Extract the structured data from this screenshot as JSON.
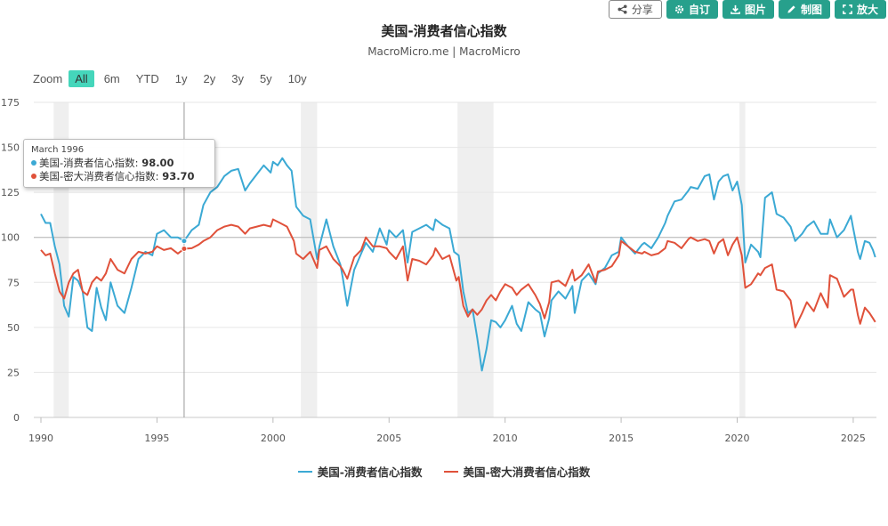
{
  "toolbar": {
    "share": "分享",
    "custom": "自订",
    "image": "图片",
    "draw": "制图",
    "enlarge": "放大"
  },
  "zoom": {
    "label": "Zoom",
    "options": [
      "All",
      "6m",
      "YTD",
      "1y",
      "2y",
      "3y",
      "5y",
      "10y"
    ],
    "active": "All"
  },
  "tooltip": {
    "date": "March 1996",
    "rows": [
      {
        "name": "美国-消费者信心指数",
        "value": "98.00"
      },
      {
        "name": "美国-密大消费者信心指数",
        "value": "93.70"
      }
    ]
  },
  "chart_data": {
    "type": "line",
    "title": "美国-消费者信心指数",
    "subtitle": "MacroMicro.me | MacroMicro",
    "xlim": [
      1990,
      2026
    ],
    "ylim": [
      0,
      175
    ],
    "yticks": [
      0,
      25,
      50,
      75,
      100,
      125,
      150,
      175
    ],
    "xticks": [
      1990,
      1995,
      2000,
      2005,
      2010,
      2015,
      2020,
      2025
    ],
    "grid": true,
    "legend_position": "bottom",
    "reference_line": 100,
    "crosshair_x": 1996.17,
    "recessions": [
      [
        1990.55,
        1991.2
      ],
      [
        2001.2,
        2001.9
      ],
      [
        2007.95,
        2009.5
      ],
      [
        2020.1,
        2020.35
      ]
    ],
    "series": [
      {
        "name": "美国-消费者信心指数",
        "color": "#3ba9d4",
        "points": [
          [
            1990,
            113
          ],
          [
            1990.2,
            108
          ],
          [
            1990.4,
            108
          ],
          [
            1990.6,
            95
          ],
          [
            1990.8,
            85
          ],
          [
            1991,
            62
          ],
          [
            1991.2,
            56
          ],
          [
            1991.4,
            78
          ],
          [
            1991.6,
            76
          ],
          [
            1991.8,
            70
          ],
          [
            1992,
            50
          ],
          [
            1992.2,
            48
          ],
          [
            1992.4,
            72
          ],
          [
            1992.6,
            61
          ],
          [
            1992.8,
            54
          ],
          [
            1993,
            75
          ],
          [
            1993.3,
            62
          ],
          [
            1993.6,
            58
          ],
          [
            1993.9,
            72
          ],
          [
            1994.2,
            88
          ],
          [
            1994.5,
            92
          ],
          [
            1994.8,
            90
          ],
          [
            1995,
            102
          ],
          [
            1995.3,
            104
          ],
          [
            1995.6,
            100
          ],
          [
            1995.9,
            100
          ],
          [
            1996.17,
            98
          ],
          [
            1996.5,
            104
          ],
          [
            1996.8,
            107
          ],
          [
            1997,
            118
          ],
          [
            1997.3,
            125
          ],
          [
            1997.6,
            128
          ],
          [
            1997.9,
            134
          ],
          [
            1998.2,
            137
          ],
          [
            1998.5,
            138
          ],
          [
            1998.8,
            126
          ],
          [
            1999,
            130
          ],
          [
            1999.3,
            135
          ],
          [
            1999.6,
            140
          ],
          [
            1999.9,
            136
          ],
          [
            2000,
            142
          ],
          [
            2000.2,
            140
          ],
          [
            2000.4,
            144
          ],
          [
            2000.6,
            140
          ],
          [
            2000.8,
            137
          ],
          [
            2001,
            117
          ],
          [
            2001.3,
            112
          ],
          [
            2001.6,
            110
          ],
          [
            2001.9,
            88
          ],
          [
            2002,
            95
          ],
          [
            2002.3,
            110
          ],
          [
            2002.6,
            95
          ],
          [
            2002.9,
            85
          ],
          [
            2003,
            78
          ],
          [
            2003.2,
            62
          ],
          [
            2003.5,
            82
          ],
          [
            2003.8,
            91
          ],
          [
            2004,
            97
          ],
          [
            2004.3,
            92
          ],
          [
            2004.6,
            105
          ],
          [
            2004.9,
            96
          ],
          [
            2005,
            104
          ],
          [
            2005.3,
            100
          ],
          [
            2005.6,
            104
          ],
          [
            2005.8,
            86
          ],
          [
            2006,
            103
          ],
          [
            2006.3,
            105
          ],
          [
            2006.6,
            107
          ],
          [
            2006.9,
            104
          ],
          [
            2007,
            110
          ],
          [
            2007.3,
            107
          ],
          [
            2007.6,
            105
          ],
          [
            2007.8,
            92
          ],
          [
            2008,
            90
          ],
          [
            2008.2,
            70
          ],
          [
            2008.4,
            58
          ],
          [
            2008.6,
            60
          ],
          [
            2008.8,
            44
          ],
          [
            2009,
            26
          ],
          [
            2009.2,
            38
          ],
          [
            2009.4,
            54
          ],
          [
            2009.6,
            53
          ],
          [
            2009.8,
            50
          ],
          [
            2010,
            54
          ],
          [
            2010.3,
            62
          ],
          [
            2010.5,
            52
          ],
          [
            2010.7,
            48
          ],
          [
            2011,
            64
          ],
          [
            2011.3,
            60
          ],
          [
            2011.5,
            58
          ],
          [
            2011.7,
            45
          ],
          [
            2011.9,
            55
          ],
          [
            2012,
            65
          ],
          [
            2012.3,
            70
          ],
          [
            2012.6,
            66
          ],
          [
            2012.9,
            73
          ],
          [
            2013,
            58
          ],
          [
            2013.3,
            76
          ],
          [
            2013.6,
            80
          ],
          [
            2013.9,
            74
          ],
          [
            2014,
            80
          ],
          [
            2014.3,
            83
          ],
          [
            2014.6,
            90
          ],
          [
            2014.9,
            92
          ],
          [
            2015,
            100
          ],
          [
            2015.3,
            95
          ],
          [
            2015.6,
            91
          ],
          [
            2015.9,
            96
          ],
          [
            2016,
            97
          ],
          [
            2016.3,
            94
          ],
          [
            2016.6,
            100
          ],
          [
            2016.9,
            108
          ],
          [
            2017,
            112
          ],
          [
            2017.3,
            120
          ],
          [
            2017.6,
            121
          ],
          [
            2017.9,
            126
          ],
          [
            2018,
            128
          ],
          [
            2018.3,
            127
          ],
          [
            2018.6,
            134
          ],
          [
            2018.8,
            135
          ],
          [
            2019,
            121
          ],
          [
            2019.2,
            131
          ],
          [
            2019.4,
            134
          ],
          [
            2019.6,
            135
          ],
          [
            2019.8,
            126
          ],
          [
            2020,
            131
          ],
          [
            2020.2,
            118
          ],
          [
            2020.35,
            86
          ],
          [
            2020.6,
            96
          ],
          [
            2020.9,
            92
          ],
          [
            2021,
            89
          ],
          [
            2021.2,
            122
          ],
          [
            2021.5,
            125
          ],
          [
            2021.7,
            113
          ],
          [
            2022,
            111
          ],
          [
            2022.3,
            106
          ],
          [
            2022.5,
            98
          ],
          [
            2022.8,
            102
          ],
          [
            2023,
            106
          ],
          [
            2023.3,
            109
          ],
          [
            2023.6,
            102
          ],
          [
            2023.9,
            102
          ],
          [
            2024,
            110
          ],
          [
            2024.3,
            100
          ],
          [
            2024.6,
            104
          ],
          [
            2024.9,
            112
          ],
          [
            2025,
            105
          ],
          [
            2025.2,
            92
          ],
          [
            2025.3,
            88
          ],
          [
            2025.5,
            98
          ],
          [
            2025.7,
            97
          ],
          [
            2025.85,
            93
          ],
          [
            2025.95,
            89
          ]
        ]
      },
      {
        "name": "美国-密大消费者信心指数",
        "color": "#e0513a",
        "points": [
          [
            1990,
            93
          ],
          [
            1990.2,
            90
          ],
          [
            1990.4,
            91
          ],
          [
            1990.6,
            80
          ],
          [
            1990.8,
            70
          ],
          [
            1991,
            66
          ],
          [
            1991.2,
            75
          ],
          [
            1991.4,
            80
          ],
          [
            1991.6,
            82
          ],
          [
            1991.8,
            70
          ],
          [
            1992,
            68
          ],
          [
            1992.2,
            75
          ],
          [
            1992.4,
            78
          ],
          [
            1992.6,
            76
          ],
          [
            1992.8,
            80
          ],
          [
            1993,
            88
          ],
          [
            1993.3,
            82
          ],
          [
            1993.6,
            80
          ],
          [
            1993.9,
            88
          ],
          [
            1994.2,
            92
          ],
          [
            1994.5,
            91
          ],
          [
            1994.8,
            92
          ],
          [
            1995,
            95
          ],
          [
            1995.3,
            93
          ],
          [
            1995.6,
            94
          ],
          [
            1995.9,
            91
          ],
          [
            1996.17,
            93.7
          ],
          [
            1996.5,
            94
          ],
          [
            1996.8,
            96
          ],
          [
            1997,
            98
          ],
          [
            1997.3,
            100
          ],
          [
            1997.6,
            104
          ],
          [
            1997.9,
            106
          ],
          [
            1998.2,
            107
          ],
          [
            1998.5,
            106
          ],
          [
            1998.8,
            102
          ],
          [
            1999,
            105
          ],
          [
            1999.3,
            106
          ],
          [
            1999.6,
            107
          ],
          [
            1999.9,
            106
          ],
          [
            2000,
            110
          ],
          [
            2000.3,
            108
          ],
          [
            2000.6,
            106
          ],
          [
            2000.9,
            98
          ],
          [
            2001,
            91
          ],
          [
            2001.3,
            88
          ],
          [
            2001.6,
            92
          ],
          [
            2001.9,
            83
          ],
          [
            2002,
            93
          ],
          [
            2002.3,
            95
          ],
          [
            2002.6,
            88
          ],
          [
            2002.9,
            84
          ],
          [
            2003,
            82
          ],
          [
            2003.2,
            77
          ],
          [
            2003.5,
            89
          ],
          [
            2003.8,
            93
          ],
          [
            2004,
            100
          ],
          [
            2004.3,
            95
          ],
          [
            2004.6,
            95
          ],
          [
            2004.9,
            94
          ],
          [
            2005,
            92
          ],
          [
            2005.3,
            88
          ],
          [
            2005.6,
            95
          ],
          [
            2005.8,
            76
          ],
          [
            2006,
            88
          ],
          [
            2006.3,
            87
          ],
          [
            2006.6,
            85
          ],
          [
            2006.9,
            90
          ],
          [
            2007,
            94
          ],
          [
            2007.3,
            88
          ],
          [
            2007.6,
            90
          ],
          [
            2007.9,
            76
          ],
          [
            2008,
            78
          ],
          [
            2008.2,
            62
          ],
          [
            2008.4,
            56
          ],
          [
            2008.6,
            60
          ],
          [
            2008.8,
            57
          ],
          [
            2009,
            60
          ],
          [
            2009.2,
            65
          ],
          [
            2009.4,
            68
          ],
          [
            2009.6,
            65
          ],
          [
            2009.8,
            70
          ],
          [
            2010,
            74
          ],
          [
            2010.3,
            72
          ],
          [
            2010.5,
            68
          ],
          [
            2010.7,
            71
          ],
          [
            2011,
            74
          ],
          [
            2011.3,
            68
          ],
          [
            2011.5,
            63
          ],
          [
            2011.7,
            55
          ],
          [
            2011.9,
            64
          ],
          [
            2012,
            75
          ],
          [
            2012.3,
            76
          ],
          [
            2012.6,
            73
          ],
          [
            2012.9,
            82
          ],
          [
            2013,
            76
          ],
          [
            2013.3,
            79
          ],
          [
            2013.6,
            85
          ],
          [
            2013.9,
            75
          ],
          [
            2014,
            81
          ],
          [
            2014.3,
            82
          ],
          [
            2014.6,
            84
          ],
          [
            2014.9,
            90
          ],
          [
            2015,
            98
          ],
          [
            2015.3,
            95
          ],
          [
            2015.6,
            92
          ],
          [
            2015.9,
            91
          ],
          [
            2016,
            92
          ],
          [
            2016.3,
            90
          ],
          [
            2016.6,
            91
          ],
          [
            2016.9,
            94
          ],
          [
            2017,
            98
          ],
          [
            2017.3,
            97
          ],
          [
            2017.6,
            94
          ],
          [
            2017.9,
            99
          ],
          [
            2018,
            100
          ],
          [
            2018.3,
            98
          ],
          [
            2018.6,
            99
          ],
          [
            2018.8,
            98
          ],
          [
            2019,
            91
          ],
          [
            2019.2,
            97
          ],
          [
            2019.4,
            99
          ],
          [
            2019.6,
            90
          ],
          [
            2019.8,
            96
          ],
          [
            2020,
            100
          ],
          [
            2020.2,
            90
          ],
          [
            2020.35,
            72
          ],
          [
            2020.6,
            74
          ],
          [
            2020.9,
            80
          ],
          [
            2021,
            79
          ],
          [
            2021.2,
            83
          ],
          [
            2021.5,
            85
          ],
          [
            2021.7,
            71
          ],
          [
            2022,
            70
          ],
          [
            2022.3,
            65
          ],
          [
            2022.5,
            50
          ],
          [
            2022.8,
            58
          ],
          [
            2023,
            64
          ],
          [
            2023.3,
            59
          ],
          [
            2023.6,
            69
          ],
          [
            2023.9,
            61
          ],
          [
            2024,
            79
          ],
          [
            2024.3,
            77
          ],
          [
            2024.6,
            67
          ],
          [
            2024.9,
            71
          ],
          [
            2025,
            71
          ],
          [
            2025.2,
            57
          ],
          [
            2025.3,
            52
          ],
          [
            2025.5,
            61
          ],
          [
            2025.7,
            58
          ],
          [
            2025.85,
            55
          ],
          [
            2025.95,
            53
          ]
        ]
      }
    ]
  }
}
